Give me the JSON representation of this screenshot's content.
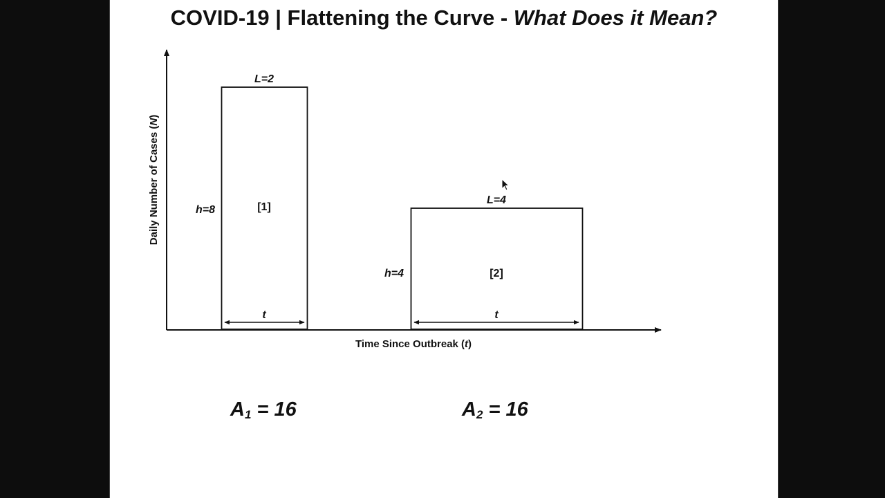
{
  "title": {
    "main": "COVID-19 | Flattening the Curve - ",
    "italic": "What Does it Mean?"
  },
  "axes": {
    "ylabel_prefix": "Daily Number of Cases (",
    "ylabel_var": "N",
    "ylabel_suffix": ")",
    "xlabel_prefix": "Time Since Outbreak (",
    "xlabel_var": "t",
    "xlabel_suffix": ")"
  },
  "rectangles": [
    {
      "id": "[1]",
      "length_label": "L=2",
      "height_label": "h=8",
      "span_label": "t",
      "length": 2,
      "height": 8
    },
    {
      "id": "[2]",
      "length_label": "L=4",
      "height_label": "h=4",
      "span_label": "t",
      "length": 4,
      "height": 4
    }
  ],
  "areas": [
    {
      "symbol": "A",
      "subscript": "1",
      "rhs": " = 16"
    },
    {
      "symbol": "A",
      "subscript": "2",
      "rhs": " = 16"
    }
  ],
  "colors": {
    "background": "#0d0d0d",
    "slide": "#ffffff",
    "ink": "#111111"
  },
  "icons": {
    "cursor": "mouse-pointer-icon"
  }
}
